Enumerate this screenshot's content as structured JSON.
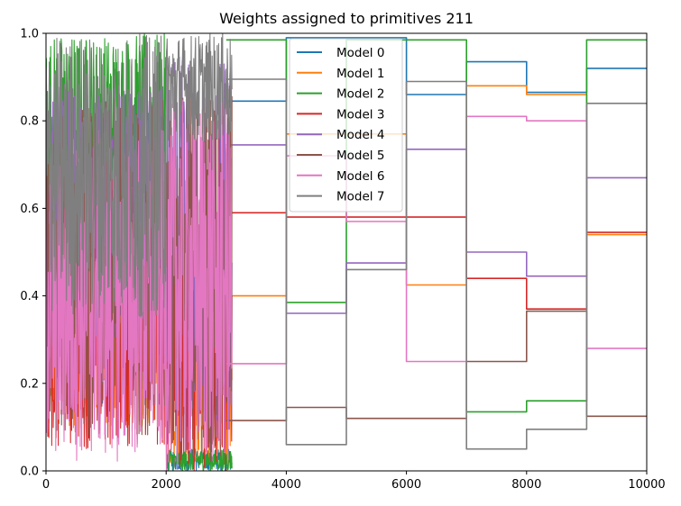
{
  "chart_data": {
    "type": "line",
    "title": "Weights assigned to primitives 211",
    "xlabel": "",
    "ylabel": "",
    "xlim": [
      0,
      10000
    ],
    "ylim": [
      0.0,
      1.0
    ],
    "x_ticks": [
      "0",
      "2000",
      "4000",
      "6000",
      "8000",
      "10000"
    ],
    "y_ticks": [
      "0.0",
      "0.2",
      "0.4",
      "0.6",
      "0.8",
      "1.0"
    ],
    "grid": false,
    "legend_position": "upper center",
    "noise_region": [
      0,
      3100
    ],
    "series": [
      {
        "name": "Model 0",
        "color": "#1f77b4",
        "steps": [
          [
            3000,
            0.845
          ],
          [
            4000,
            0.845
          ],
          [
            4000,
            0.99
          ],
          [
            6000,
            0.99
          ],
          [
            6000,
            0.86
          ],
          [
            7000,
            0.86
          ],
          [
            7000,
            0.935
          ],
          [
            8000,
            0.935
          ],
          [
            8000,
            0.865
          ],
          [
            9000,
            0.865
          ],
          [
            9000,
            0.92
          ],
          [
            10000,
            0.92
          ]
        ]
      },
      {
        "name": "Model 1",
        "color": "#ff7f0e",
        "steps": [
          [
            3000,
            0.4
          ],
          [
            4000,
            0.4
          ],
          [
            4000,
            0.77
          ],
          [
            6000,
            0.77
          ],
          [
            6000,
            0.425
          ],
          [
            7000,
            0.425
          ],
          [
            7000,
            0.88
          ],
          [
            8000,
            0.88
          ],
          [
            8000,
            0.86
          ],
          [
            9000,
            0.86
          ],
          [
            9000,
            0.54
          ],
          [
            10000,
            0.54
          ]
        ]
      },
      {
        "name": "Model 2",
        "color": "#2ca02c",
        "steps": [
          [
            3000,
            0.985
          ],
          [
            4000,
            0.985
          ],
          [
            4000,
            0.385
          ],
          [
            5000,
            0.385
          ],
          [
            5000,
            0.985
          ],
          [
            7000,
            0.985
          ],
          [
            7000,
            0.135
          ],
          [
            8000,
            0.135
          ],
          [
            8000,
            0.16
          ],
          [
            9000,
            0.16
          ],
          [
            9000,
            0.985
          ],
          [
            10000,
            0.985
          ]
        ]
      },
      {
        "name": "Model 3",
        "color": "#d62728",
        "steps": [
          [
            3000,
            0.59
          ],
          [
            4000,
            0.59
          ],
          [
            4000,
            0.58
          ],
          [
            6000,
            0.58
          ],
          [
            6000,
            0.58
          ],
          [
            7000,
            0.58
          ],
          [
            7000,
            0.44
          ],
          [
            8000,
            0.44
          ],
          [
            8000,
            0.37
          ],
          [
            9000,
            0.37
          ],
          [
            9000,
            0.545
          ],
          [
            10000,
            0.545
          ]
        ]
      },
      {
        "name": "Model 4",
        "color": "#9467bd",
        "steps": [
          [
            3000,
            0.745
          ],
          [
            4000,
            0.745
          ],
          [
            4000,
            0.36
          ],
          [
            5000,
            0.36
          ],
          [
            5000,
            0.475
          ],
          [
            6000,
            0.475
          ],
          [
            6000,
            0.735
          ],
          [
            7000,
            0.735
          ],
          [
            7000,
            0.5
          ],
          [
            8000,
            0.5
          ],
          [
            8000,
            0.445
          ],
          [
            9000,
            0.445
          ],
          [
            9000,
            0.67
          ],
          [
            10000,
            0.67
          ]
        ]
      },
      {
        "name": "Model 5",
        "color": "#8c564b",
        "steps": [
          [
            3000,
            0.115
          ],
          [
            4000,
            0.115
          ],
          [
            4000,
            0.145
          ],
          [
            5000,
            0.145
          ],
          [
            5000,
            0.12
          ],
          [
            7000,
            0.12
          ],
          [
            7000,
            0.25
          ],
          [
            8000,
            0.25
          ],
          [
            8000,
            0.365
          ],
          [
            9000,
            0.365
          ],
          [
            9000,
            0.125
          ],
          [
            10000,
            0.125
          ]
        ]
      },
      {
        "name": "Model 6",
        "color": "#e377c2",
        "steps": [
          [
            3000,
            0.245
          ],
          [
            4000,
            0.245
          ],
          [
            4000,
            0.72
          ],
          [
            5000,
            0.72
          ],
          [
            5000,
            0.57
          ],
          [
            6000,
            0.57
          ],
          [
            6000,
            0.25
          ],
          [
            7000,
            0.25
          ],
          [
            7000,
            0.81
          ],
          [
            8000,
            0.81
          ],
          [
            8000,
            0.8
          ],
          [
            9000,
            0.8
          ],
          [
            9000,
            0.28
          ],
          [
            10000,
            0.28
          ]
        ]
      },
      {
        "name": "Model 7",
        "color": "#7f7f7f",
        "steps": [
          [
            3000,
            0.895
          ],
          [
            4000,
            0.895
          ],
          [
            4000,
            0.06
          ],
          [
            5000,
            0.06
          ],
          [
            5000,
            0.46
          ],
          [
            6000,
            0.46
          ],
          [
            6000,
            0.89
          ],
          [
            7000,
            0.89
          ],
          [
            7000,
            0.05
          ],
          [
            8000,
            0.05
          ],
          [
            8000,
            0.095
          ],
          [
            9000,
            0.095
          ],
          [
            9000,
            0.84
          ],
          [
            10000,
            0.84
          ]
        ]
      }
    ]
  }
}
